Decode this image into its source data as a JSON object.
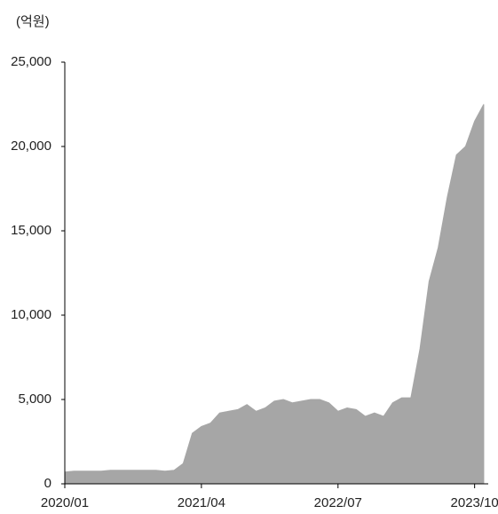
{
  "chart_data": {
    "type": "area",
    "y_label": "(억원)",
    "x": [
      "2020/01",
      "2020/02",
      "2020/03",
      "2020/04",
      "2020/05",
      "2020/06",
      "2020/07",
      "2020/08",
      "2020/09",
      "2020/10",
      "2020/11",
      "2020/12",
      "2021/01",
      "2021/02",
      "2021/03",
      "2021/04",
      "2021/05",
      "2021/06",
      "2021/07",
      "2021/08",
      "2021/09",
      "2021/10",
      "2021/11",
      "2021/12",
      "2022/01",
      "2022/02",
      "2022/03",
      "2022/04",
      "2022/05",
      "2022/06",
      "2022/07",
      "2022/08",
      "2022/09",
      "2022/10",
      "2022/11",
      "2022/12",
      "2023/01",
      "2023/02",
      "2023/03",
      "2023/04",
      "2023/05",
      "2023/06",
      "2023/07",
      "2023/08",
      "2023/09",
      "2023/10",
      "2023/11"
    ],
    "values": [
      700,
      750,
      750,
      750,
      750,
      800,
      800,
      800,
      800,
      800,
      800,
      750,
      800,
      1200,
      3000,
      3400,
      3600,
      4200,
      4300,
      4400,
      4700,
      4300,
      4500,
      4900,
      5000,
      4800,
      4900,
      5000,
      5000,
      4800,
      4300,
      4500,
      4400,
      4000,
      4200,
      4000,
      4800,
      5100,
      5100,
      8000,
      12000,
      14000,
      17000,
      19500,
      20000,
      21500,
      22500
    ],
    "color": "#a6a6a6",
    "xticks": [
      "2020/01",
      "2021/04",
      "2022/07",
      "2023/10"
    ],
    "ylim": [
      0,
      25000
    ],
    "yticks": [
      0,
      {
        "value": 5000,
        "label": "5,000"
      },
      {
        "value": 10000,
        "label": "10,000"
      },
      {
        "value": 15000,
        "label": "15,000"
      },
      {
        "value": 20000,
        "label": "20,000"
      },
      {
        "value": 25000,
        "label": "25,000"
      }
    ]
  }
}
